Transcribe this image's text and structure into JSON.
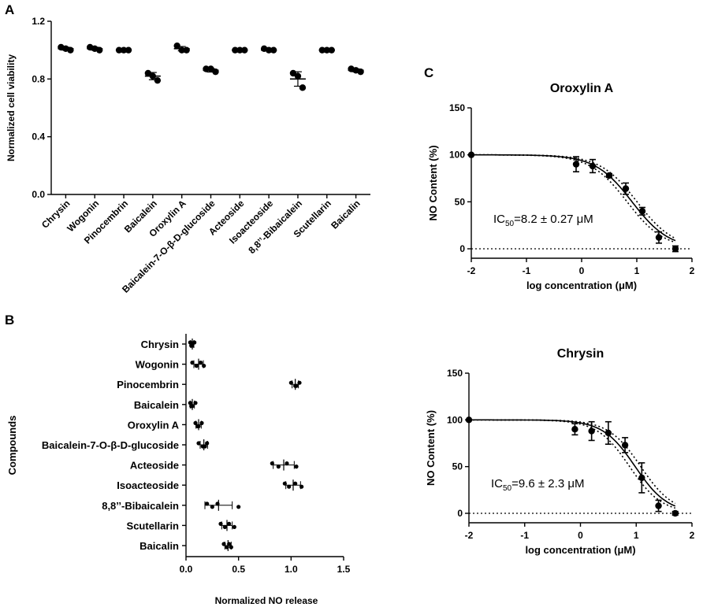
{
  "figure": {
    "panel_labels": [
      "A",
      "B",
      "C"
    ]
  },
  "chart_data": [
    {
      "id": "A",
      "type": "scatter",
      "panel_label": "A",
      "ylabel": "Normalized cell viability",
      "ylim": [
        0,
        1.2
      ],
      "yticks": [
        0.0,
        0.4,
        0.8,
        1.2
      ],
      "ytick_labels": [
        "0.0",
        "0.4",
        "0.8",
        "1.2"
      ],
      "categories": [
        "Chrysin",
        "Wogonin",
        "Pinocembrin",
        "Baicalein",
        "Oroxylin A",
        "Baicalein-7-O-β-D-glucoside",
        "Acteoside",
        "Isoacteoside",
        "8,8’’-Bibaicalein",
        "Scutellarin",
        "Baicalin"
      ],
      "points": [
        [
          1.02,
          1.01,
          1.0
        ],
        [
          1.02,
          1.01,
          1.0
        ],
        [
          1.0,
          1.0,
          1.0
        ],
        [
          0.84,
          0.82,
          0.79
        ],
        [
          1.03,
          1.0,
          1.0
        ],
        [
          0.87,
          0.87,
          0.85
        ],
        [
          1.0,
          1.0,
          1.0
        ],
        [
          1.01,
          1.0,
          1.0
        ],
        [
          0.84,
          0.82,
          0.74
        ],
        [
          1.0,
          1.0,
          1.0
        ],
        [
          0.87,
          0.86,
          0.85
        ]
      ],
      "means": [
        1.01,
        1.01,
        1.0,
        0.82,
        1.01,
        0.86,
        1.0,
        1.0,
        0.8,
        1.0,
        0.86
      ],
      "errors": [
        0.01,
        0.01,
        0.0,
        0.025,
        0.015,
        0.012,
        0.0,
        0.005,
        0.05,
        0.0,
        0.01
      ]
    },
    {
      "id": "B",
      "type": "scatter",
      "panel_label": "B",
      "xlabel": "Normalized NO release",
      "ylabel": "Compounds",
      "xlim": [
        0,
        1.5
      ],
      "xticks": [
        0.0,
        0.5,
        1.0,
        1.5
      ],
      "xtick_labels": [
        "0.0",
        "0.5",
        "1.0",
        "1.5"
      ],
      "categories": [
        "Chrysin",
        "Wogonin",
        "Pinocembrin",
        "Baicalein",
        "Oroxylin A",
        "Baicalein-7-O-β-D-glucoside",
        "Acteoside",
        "Isoacteoside",
        "8,8’’-Bibaicalein",
        "Scutellarin",
        "Baicalin"
      ],
      "points": [
        [
          0.04,
          0.06,
          0.08,
          0.05
        ],
        [
          0.06,
          0.1,
          0.14,
          0.17
        ],
        [
          1.0,
          1.04,
          1.08,
          1.05
        ],
        [
          0.04,
          0.06,
          0.09,
          0.05
        ],
        [
          0.09,
          0.12,
          0.15,
          0.11
        ],
        [
          0.12,
          0.16,
          0.2,
          0.18
        ],
        [
          0.82,
          0.88,
          0.96,
          1.05
        ],
        [
          0.94,
          0.98,
          1.04,
          1.1
        ],
        [
          0.2,
          0.25,
          0.3,
          0.5
        ],
        [
          0.33,
          0.37,
          0.41,
          0.46
        ],
        [
          0.36,
          0.39,
          0.41,
          0.43
        ]
      ],
      "means": [
        0.06,
        0.12,
        1.04,
        0.06,
        0.12,
        0.17,
        0.93,
        1.02,
        0.31,
        0.39,
        0.4
      ],
      "errors": [
        0.015,
        0.045,
        0.03,
        0.02,
        0.025,
        0.035,
        0.1,
        0.07,
        0.13,
        0.05,
        0.03
      ]
    },
    {
      "id": "C1",
      "type": "line",
      "panel_label": "C",
      "title": "Oroxylin A",
      "xlabel": "log concentration (μM)",
      "ylabel": "NO Content (%)",
      "xlim": [
        -2,
        2
      ],
      "ylim": [
        0,
        150
      ],
      "xticks": [
        -2,
        -1,
        0,
        1,
        2
      ],
      "xtick_labels": [
        "-2",
        "-1",
        "0",
        "1",
        "2"
      ],
      "yticks": [
        0,
        50,
        100,
        150
      ],
      "ytick_labels": [
        "0",
        "50",
        "100",
        "150"
      ],
      "annotation": {
        "ic_prefix": "IC",
        "ic_sub": "50",
        "ic_value": "=8.2 ± 0.27 μM"
      },
      "x": [
        -2,
        -0.1,
        0.2,
        0.5,
        0.8,
        1.1,
        1.4,
        1.7
      ],
      "y": [
        100,
        90,
        88,
        78,
        64,
        40,
        12,
        0
      ],
      "err": [
        0,
        8,
        7,
        2,
        6,
        4,
        6,
        3
      ],
      "fit": {
        "top": 100,
        "bottom": 0,
        "logIC50": 0.914,
        "hill": -1.3,
        "band_delta": 0.09
      }
    },
    {
      "id": "C2",
      "type": "line",
      "title": "Chrysin",
      "xlabel": "log concentration (μM)",
      "ylabel": "NO Content (%)",
      "xlim": [
        -2,
        2
      ],
      "ylim": [
        0,
        150
      ],
      "xticks": [
        -2,
        -1,
        0,
        1,
        2
      ],
      "xtick_labels": [
        "-2",
        "-1",
        "0",
        "1",
        "2"
      ],
      "yticks": [
        0,
        50,
        100,
        150
      ],
      "ytick_labels": [
        "0",
        "50",
        "100",
        "150"
      ],
      "annotation": {
        "ic_prefix": "IC",
        "ic_sub": "50",
        "ic_value": "=9.6 ± 2.3 μM"
      },
      "x": [
        -2,
        -0.1,
        0.2,
        0.5,
        0.8,
        1.1,
        1.4,
        1.7
      ],
      "y": [
        100,
        90,
        88,
        86,
        73,
        38,
        8,
        0
      ],
      "err": [
        0,
        6,
        10,
        12,
        8,
        16,
        6,
        2
      ],
      "fit": {
        "top": 100,
        "bottom": 0,
        "logIC50": 0.982,
        "hill": -1.5,
        "band_delta": 0.1
      }
    }
  ]
}
